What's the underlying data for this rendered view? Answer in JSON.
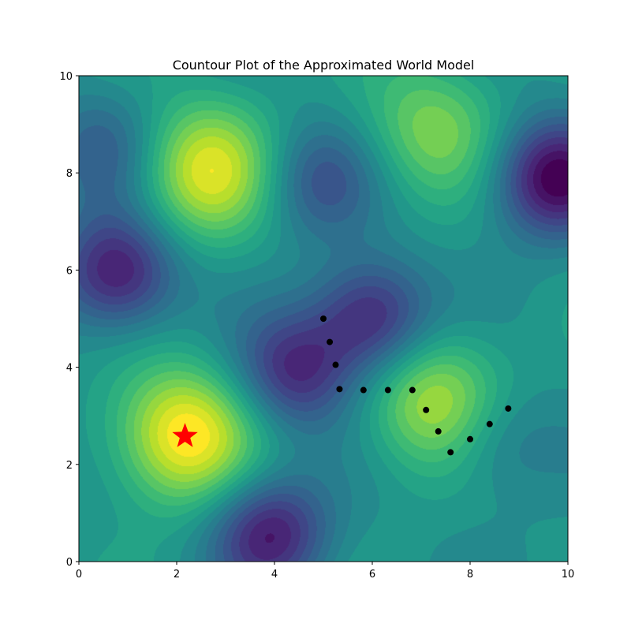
{
  "chart_data": {
    "type": "contour",
    "title": "Countour Plot of the Approximated World Model",
    "xlabel": "",
    "ylabel": "",
    "xlim": [
      0,
      10
    ],
    "ylim": [
      0,
      10
    ],
    "x_ticks": [
      "0",
      "2",
      "4",
      "6",
      "8",
      "10"
    ],
    "y_ticks": [
      "0",
      "2",
      "4",
      "6",
      "8",
      "10"
    ],
    "colormap": "viridis",
    "grid": false,
    "field_extrema": [
      {
        "kind": "high",
        "x": 2.15,
        "y": 2.6,
        "strength": 1.0
      },
      {
        "kind": "high",
        "x": 2.6,
        "y": 8.05,
        "strength": 0.85
      },
      {
        "kind": "high",
        "x": 7.3,
        "y": 3.3,
        "strength": 0.75
      },
      {
        "kind": "high",
        "x": 7.2,
        "y": 8.9,
        "strength": 0.55
      },
      {
        "kind": "low",
        "x": 9.7,
        "y": 7.9,
        "strength": 1.0
      },
      {
        "kind": "low",
        "x": 0.8,
        "y": 5.95,
        "strength": 0.9
      },
      {
        "kind": "low",
        "x": 6.0,
        "y": 5.0,
        "strength": 0.85
      },
      {
        "kind": "low",
        "x": 3.9,
        "y": 0.6,
        "strength": 0.85
      },
      {
        "kind": "low",
        "x": 4.4,
        "y": 3.9,
        "strength": 0.75
      },
      {
        "kind": "low",
        "x": 4.9,
        "y": 7.85,
        "strength": 0.5
      },
      {
        "kind": "low",
        "x": 0.5,
        "y": 8.5,
        "strength": 0.4
      },
      {
        "kind": "low",
        "x": 8.5,
        "y": 2.5,
        "strength": 0.35
      }
    ],
    "path_points": [
      {
        "x": 5.0,
        "y": 5.0
      },
      {
        "x": 5.13,
        "y": 4.52
      },
      {
        "x": 5.25,
        "y": 4.05
      },
      {
        "x": 5.33,
        "y": 3.55
      },
      {
        "x": 5.82,
        "y": 3.53
      },
      {
        "x": 6.32,
        "y": 3.53
      },
      {
        "x": 6.82,
        "y": 3.53
      },
      {
        "x": 7.1,
        "y": 3.12
      },
      {
        "x": 7.35,
        "y": 2.68
      },
      {
        "x": 7.6,
        "y": 2.25
      },
      {
        "x": 8.0,
        "y": 2.52
      },
      {
        "x": 8.4,
        "y": 2.83
      },
      {
        "x": 8.78,
        "y": 3.15
      }
    ],
    "star": {
      "x": 2.17,
      "y": 2.58,
      "color": "#ff0000"
    },
    "point_color": "#000000"
  }
}
